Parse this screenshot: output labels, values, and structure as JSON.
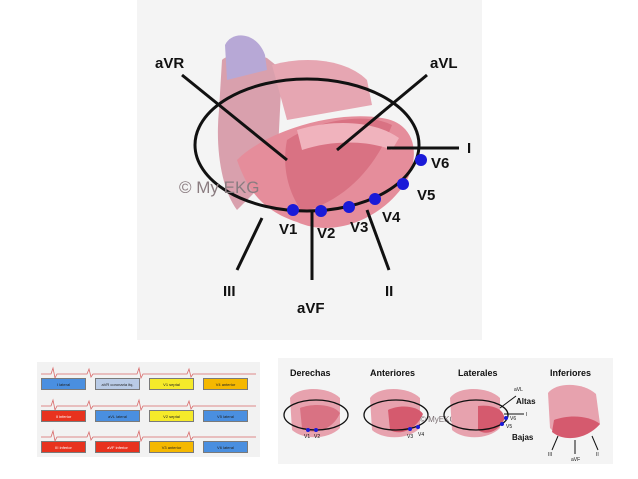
{
  "main": {
    "watermark": "© My EKG",
    "limb_leads": [
      "aVR",
      "aVL",
      "I",
      "II",
      "III",
      "aVF"
    ],
    "precordial_leads": [
      "V1",
      "V2",
      "V3",
      "V4",
      "V5",
      "V6"
    ]
  },
  "grid": {
    "rows": [
      [
        "I lateral",
        "aVR coronaria itq.",
        "V1 septal",
        "V4 anterior"
      ],
      [
        "II inferior",
        "aVL lateral",
        "V2 septal",
        "V5 lateral"
      ],
      [
        "III inferior",
        "aVF inferior",
        "V3 anterior",
        "V6 lateral"
      ]
    ],
    "colors": {
      "lateral": "#4a8fe0",
      "inferior": "#e8321e",
      "septal": "#f5ea2a",
      "anterior": "#f5b800",
      "avr": "#b9cbe6"
    }
  },
  "mini": {
    "titles": [
      "Derechas",
      "Anteriores",
      "Laterales",
      "Inferiores"
    ],
    "watermark": "© MyEKG",
    "derechas_leads": [
      "V1",
      "V2"
    ],
    "anteriores_leads": [
      "V3",
      "V4"
    ],
    "laterales_leads": [
      "aVL",
      "I",
      "V6",
      "V5"
    ],
    "laterales_notes": [
      "Altas",
      "Bajas"
    ],
    "inferiores_leads": [
      "III",
      "aVF",
      "II"
    ]
  },
  "colors": {
    "electrode": "#1a1ad8",
    "heart": "#e88c98",
    "heart_dark": "#c95a6a",
    "atrium": "#b9a6d8"
  }
}
